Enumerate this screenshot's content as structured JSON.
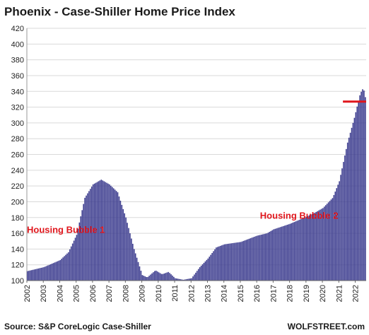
{
  "chart_data": {
    "type": "bar",
    "title": "Phoenix - Case-Shiller Home Price Index",
    "source": "Source: S&P CoreLogic Case-Shiller",
    "brand": "WOLFSTREET.com",
    "ylim": [
      100,
      420
    ],
    "yticks": [
      100,
      120,
      140,
      160,
      180,
      200,
      220,
      240,
      260,
      280,
      300,
      320,
      340,
      360,
      380,
      400,
      420
    ],
    "xticks": [
      "2002",
      "2003",
      "2004",
      "2005",
      "2006",
      "2007",
      "2008",
      "2009",
      "2010",
      "2011",
      "2012",
      "2013",
      "2014",
      "2015",
      "2016",
      "2017",
      "2018",
      "2019",
      "2020",
      "2021",
      "2022"
    ],
    "start_year": 2002,
    "bar_color": "#3d3d8f",
    "keypoints": [
      [
        2002.0,
        112
      ],
      [
        2003.0,
        117
      ],
      [
        2004.0,
        126
      ],
      [
        2004.5,
        136
      ],
      [
        2005.0,
        158
      ],
      [
        2005.5,
        205
      ],
      [
        2006.0,
        222
      ],
      [
        2006.5,
        228
      ],
      [
        2007.0,
        222
      ],
      [
        2007.5,
        212
      ],
      [
        2008.0,
        180
      ],
      [
        2008.5,
        140
      ],
      [
        2009.0,
        107
      ],
      [
        2009.3,
        104
      ],
      [
        2009.8,
        113
      ],
      [
        2010.2,
        108
      ],
      [
        2010.6,
        111
      ],
      [
        2011.0,
        103
      ],
      [
        2011.5,
        101
      ],
      [
        2012.0,
        103
      ],
      [
        2012.5,
        117
      ],
      [
        2013.0,
        128
      ],
      [
        2013.5,
        142
      ],
      [
        2014.0,
        146
      ],
      [
        2015.0,
        149
      ],
      [
        2016.0,
        157
      ],
      [
        2016.6,
        160
      ],
      [
        2017.0,
        165
      ],
      [
        2018.0,
        172
      ],
      [
        2019.0,
        181
      ],
      [
        2019.5,
        186
      ],
      [
        2020.0,
        192
      ],
      [
        2020.6,
        205
      ],
      [
        2021.0,
        226
      ],
      [
        2021.5,
        275
      ],
      [
        2021.9,
        305
      ],
      [
        2022.25,
        335
      ],
      [
        2022.4,
        343
      ],
      [
        2022.5,
        341
      ],
      [
        2022.65,
        326
      ]
    ],
    "end_month": "2022-08",
    "reference_line": {
      "value": 327,
      "color": "#e0161c"
    },
    "annotations": [
      {
        "text": "Housing Bubble 1",
        "x": 2002.0,
        "y": 165,
        "color": "#e0161c"
      },
      {
        "text": "Housing Bubble 2",
        "x": 2016.2,
        "y": 183,
        "color": "#e0161c"
      }
    ]
  }
}
